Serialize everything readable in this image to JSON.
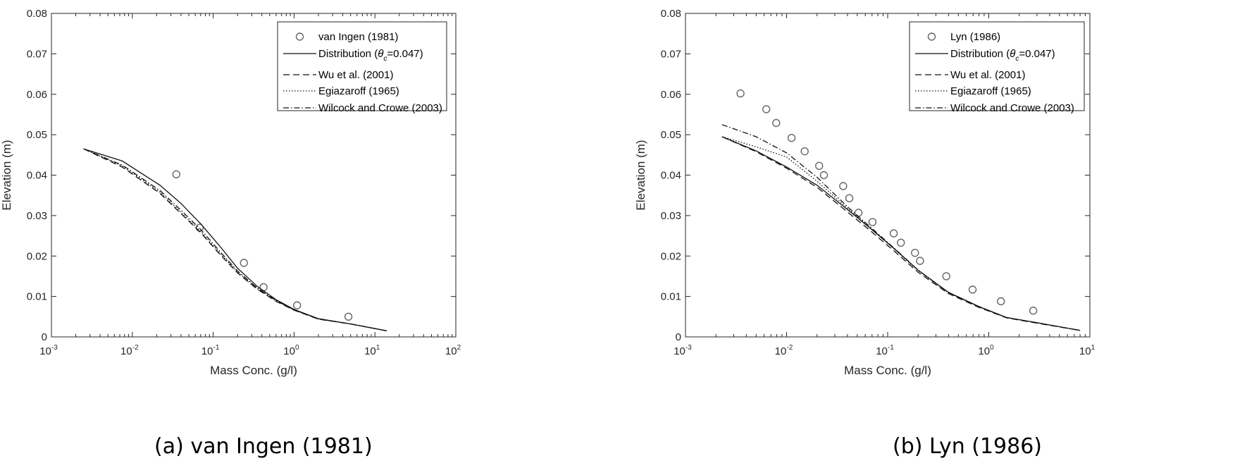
{
  "chart_data": [
    {
      "type": "line",
      "caption": "(a) van Ingen (1981)",
      "xlabel": "Mass Conc. (g/l)",
      "ylabel": "Elevation (m)",
      "xscale": "log",
      "xlim": [
        0.001,
        100
      ],
      "ylim": [
        0,
        0.08
      ],
      "x_tick_labels": [
        {
          "base": "10",
          "exp": "-3"
        },
        {
          "base": "10",
          "exp": "-2"
        },
        {
          "base": "10",
          "exp": "-1"
        },
        {
          "base": "10",
          "exp": "0"
        },
        {
          "base": "10",
          "exp": "1"
        },
        {
          "base": "10",
          "exp": "2"
        }
      ],
      "x_tick_values": [
        0.001,
        0.01,
        0.1,
        1,
        10,
        100
      ],
      "y_tick_labels": [
        "0",
        "0.01",
        "0.02",
        "0.03",
        "0.04",
        "0.05",
        "0.06",
        "0.07",
        "0.08"
      ],
      "y_tick_values": [
        0,
        0.01,
        0.02,
        0.03,
        0.04,
        0.05,
        0.06,
        0.07,
        0.08
      ],
      "legend_position": "top-right",
      "series": [
        {
          "name": "van Ingen (1981)",
          "style": "circle",
          "x": [
            0.035,
            0.068,
            0.24,
            0.42,
            1.09,
            4.7
          ],
          "y": [
            0.0402,
            0.027,
            0.0183,
            0.0123,
            0.0078,
            0.005
          ]
        },
        {
          "name": "Distribution (θc=0.047)",
          "style": "solid",
          "x": [
            0.0025,
            0.0075,
            0.022,
            0.04,
            0.07,
            0.12,
            0.2,
            0.35,
            0.6,
            1.0,
            2.0,
            5.0,
            14.0
          ],
          "y": [
            0.0465,
            0.0435,
            0.0375,
            0.033,
            0.028,
            0.0225,
            0.017,
            0.0125,
            0.0092,
            0.0068,
            0.0045,
            0.0032,
            0.0015
          ]
        },
        {
          "name": "Wu et al. (2001)",
          "style": "dashed",
          "x": [
            0.0025,
            0.0075,
            0.022,
            0.04,
            0.07,
            0.12,
            0.2,
            0.35,
            0.6,
            1.0,
            2.0,
            5.0,
            14.0
          ],
          "y": [
            0.0465,
            0.042,
            0.0355,
            0.0305,
            0.0258,
            0.0205,
            0.0158,
            0.0118,
            0.0088,
            0.0066,
            0.0044,
            0.0032,
            0.0015
          ]
        },
        {
          "name": "Egiazaroff (1965)",
          "style": "dotted",
          "x": [
            0.0025,
            0.0075,
            0.022,
            0.04,
            0.07,
            0.12,
            0.2,
            0.35,
            0.6,
            1.0,
            2.0,
            5.0,
            14.0
          ],
          "y": [
            0.0465,
            0.0423,
            0.0358,
            0.0308,
            0.0261,
            0.0208,
            0.016,
            0.012,
            0.0089,
            0.0067,
            0.0044,
            0.0032,
            0.0015
          ]
        },
        {
          "name": "Wilcock and Crowe (2003)",
          "style": "dashdot",
          "x": [
            0.0025,
            0.0075,
            0.022,
            0.04,
            0.07,
            0.12,
            0.2,
            0.35,
            0.6,
            1.0,
            2.0,
            5.0,
            14.0
          ],
          "y": [
            0.0465,
            0.0425,
            0.0362,
            0.0313,
            0.0266,
            0.0212,
            0.0163,
            0.0121,
            0.009,
            0.0067,
            0.0045,
            0.0032,
            0.0015
          ]
        }
      ]
    },
    {
      "type": "line",
      "caption": "(b) Lyn (1986)",
      "xlabel": "Mass Conc. (g/l)",
      "ylabel": "Elevation (m)",
      "xscale": "log",
      "xlim": [
        0.001,
        10
      ],
      "ylim": [
        0,
        0.08
      ],
      "x_tick_labels": [
        {
          "base": "10",
          "exp": "-3"
        },
        {
          "base": "10",
          "exp": "-2"
        },
        {
          "base": "10",
          "exp": "-1"
        },
        {
          "base": "10",
          "exp": "0"
        },
        {
          "base": "10",
          "exp": "1"
        }
      ],
      "x_tick_values": [
        0.001,
        0.01,
        0.1,
        1,
        10
      ],
      "y_tick_labels": [
        "0",
        "0.01",
        "0.02",
        "0.03",
        "0.04",
        "0.05",
        "0.06",
        "0.07",
        "0.08"
      ],
      "y_tick_values": [
        0,
        0.01,
        0.02,
        0.03,
        0.04,
        0.05,
        0.06,
        0.07,
        0.08
      ],
      "legend_position": "top-right",
      "series": [
        {
          "name": "Lyn (1986)",
          "style": "circle",
          "x": [
            0.0035,
            0.0063,
            0.0079,
            0.0112,
            0.0151,
            0.021,
            0.0234,
            0.0363,
            0.0417,
            0.0514,
            0.0708,
            0.1148,
            0.135,
            0.1862,
            0.2089,
            0.3802,
            0.6918,
            1.3183,
            2.7542
          ],
          "y": [
            0.0602,
            0.0563,
            0.0529,
            0.0492,
            0.0459,
            0.0423,
            0.04,
            0.0373,
            0.0343,
            0.0307,
            0.0284,
            0.0256,
            0.0233,
            0.0208,
            0.0188,
            0.015,
            0.0117,
            0.0088,
            0.0065
          ]
        },
        {
          "name": "Distribution (θc=0.047)",
          "style": "solid",
          "x": [
            0.0023,
            0.005,
            0.01,
            0.02,
            0.04,
            0.07,
            0.12,
            0.2,
            0.4,
            0.8,
            1.5,
            3.0,
            8.0
          ],
          "y": [
            0.0495,
            0.046,
            0.042,
            0.0375,
            0.0315,
            0.0265,
            0.0215,
            0.0165,
            0.011,
            0.0075,
            0.0048,
            0.0035,
            0.0016
          ]
        },
        {
          "name": "Wu et al. (2001)",
          "style": "dashed",
          "x": [
            0.0023,
            0.005,
            0.01,
            0.02,
            0.04,
            0.07,
            0.12,
            0.2,
            0.4,
            0.8,
            1.5,
            3.0,
            8.0
          ],
          "y": [
            0.0495,
            0.0458,
            0.0417,
            0.037,
            0.0309,
            0.0259,
            0.0209,
            0.016,
            0.0107,
            0.0073,
            0.0047,
            0.0034,
            0.0016
          ]
        },
        {
          "name": "Egiazaroff (1965)",
          "style": "dotted",
          "x": [
            0.0023,
            0.005,
            0.01,
            0.02,
            0.04,
            0.07,
            0.12,
            0.2,
            0.4,
            0.8,
            1.5,
            3.0,
            8.0
          ],
          "y": [
            0.0495,
            0.047,
            0.0445,
            0.0385,
            0.0318,
            0.0266,
            0.0214,
            0.0164,
            0.0109,
            0.0074,
            0.0048,
            0.0035,
            0.0016
          ]
        },
        {
          "name": "Wilcock and Crowe (2003)",
          "style": "dashdot",
          "x": [
            0.0023,
            0.005,
            0.01,
            0.02,
            0.04,
            0.07,
            0.12,
            0.2,
            0.4,
            0.8,
            1.5,
            3.0,
            8.0
          ],
          "y": [
            0.0525,
            0.0495,
            0.0455,
            0.0395,
            0.0322,
            0.0268,
            0.0216,
            0.0165,
            0.011,
            0.0075,
            0.0048,
            0.0035,
            0.0016
          ]
        }
      ]
    }
  ]
}
